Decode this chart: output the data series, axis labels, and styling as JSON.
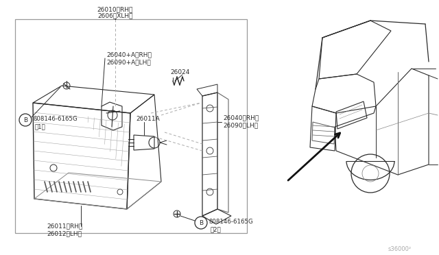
{
  "bg_color": "#ffffff",
  "lc": "#2a2a2a",
  "tc": "#2a2a2a",
  "gc": "#888888",
  "dc": "#aaaaaa",
  "labels": {
    "top1": "26010（RH）",
    "top2": "2606（XLH）",
    "ul1": "26040+A（RH）",
    "ul2": "26090+A（LH）",
    "bolt1a": "ß08146-6165G",
    "bolt1b": "（1）",
    "bulb_lbl": "26011A",
    "wire_lbl": "26024",
    "rbrk1": "26040（RH）",
    "rbrk2": "26090（LH）",
    "bot1": "26011（RH）",
    "bot2": "26012（LH）",
    "bolt2a": "ß08146-6165G",
    "bolt2b": "（2）",
    "partnum": "s36000²"
  }
}
